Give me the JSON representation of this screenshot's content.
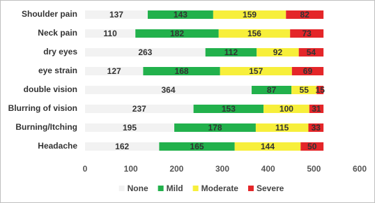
{
  "chart_data": {
    "type": "stacked_barh",
    "categories": [
      "Shoulder pain",
      "Neck pain",
      "dry eyes",
      "eye strain",
      "double vision",
      "Blurring of vision",
      "Burning/Itching",
      "Headache"
    ],
    "series": [
      {
        "name": "None",
        "color": "#f2f2f2",
        "values": [
          137,
          110,
          263,
          127,
          364,
          237,
          195,
          162
        ]
      },
      {
        "name": "Mild",
        "color": "#22b14c",
        "values": [
          143,
          182,
          112,
          168,
          87,
          153,
          178,
          165
        ]
      },
      {
        "name": "Moderate",
        "color": "#f7ef3b",
        "values": [
          159,
          156,
          92,
          157,
          55,
          100,
          115,
          144
        ]
      },
      {
        "name": "Severe",
        "color": "#e42629",
        "values": [
          82,
          73,
          54,
          69,
          15,
          31,
          33,
          50
        ]
      }
    ],
    "xlim": [
      0,
      600
    ],
    "xticks": [
      0,
      100,
      200,
      300,
      400,
      500,
      600
    ],
    "legend": "bottom"
  }
}
